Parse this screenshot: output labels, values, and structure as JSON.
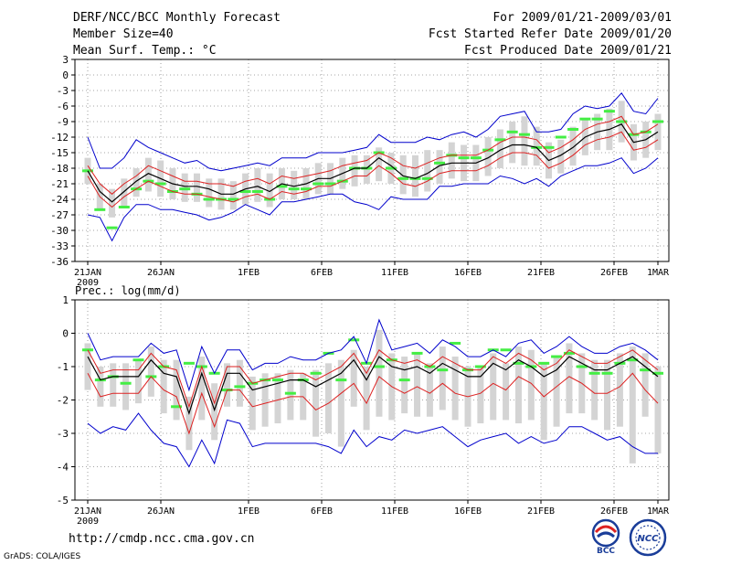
{
  "header": {
    "left": [
      "DERF/NCC/BCC Monthly Forecast",
      "Member Size=40",
      "Mean Surf. Temp.: °C"
    ],
    "right": [
      "For 2009/01/21-2009/03/01",
      "Fcst Started Refer Date 2009/01/20",
      "Fcst Produced Date 2009/01/21"
    ]
  },
  "footer": {
    "url": "http://cmdp.ncc.cma.gov.cn",
    "credit": "GrADS: COLA/IGES",
    "logo_bcc": "BCC",
    "logo_ncc": "NCC"
  },
  "colors": {
    "obs": "#44ee44",
    "mean": "#000000",
    "spread": "#dd2222",
    "range": "#0000cc",
    "box": "#d4d4d4",
    "grid": "#888888"
  },
  "chart_data": [
    {
      "type": "line",
      "title": "Mean Surf. Temp.: °C",
      "ylim": [
        -36,
        3
      ],
      "yticks": [
        3,
        0,
        -3,
        -6,
        -9,
        -12,
        -15,
        -18,
        -21,
        -24,
        -27,
        -30,
        -33,
        -36
      ],
      "xtick_days": [
        1,
        6,
        12,
        17,
        22,
        27,
        32,
        37,
        40
      ],
      "xtick_labels": [
        "21JAN",
        "26JAN",
        "1FEB",
        "6FEB",
        "11FEB",
        "16FEB",
        "21FEB",
        "26FEB",
        "1MAR"
      ],
      "year_label": "2009",
      "series": {
        "mean": [
          -18.5,
          -22.5,
          -24.5,
          -22.5,
          -20.5,
          -19,
          -20,
          -21,
          -21.5,
          -21.5,
          -22,
          -23,
          -23,
          -22,
          -21.5,
          -22.5,
          -21,
          -21.5,
          -21,
          -20,
          -20,
          -19,
          -18,
          -18,
          -16,
          -17.5,
          -19.5,
          -20,
          -19,
          -17.5,
          -17,
          -17,
          -17,
          -16,
          -14.5,
          -13.5,
          -13.5,
          -14,
          -16.5,
          -15.5,
          -14,
          -12,
          -11,
          -10.5,
          -9.5,
          -13,
          -12.5,
          -11
        ],
        "upper": [
          -17.5,
          -21,
          -23,
          -21,
          -19.5,
          -17.5,
          -18.5,
          -19.5,
          -20.5,
          -20.5,
          -21,
          -21,
          -21.5,
          -20.5,
          -20,
          -21,
          -19.5,
          -20,
          -19.5,
          -19,
          -18.5,
          -17.5,
          -17,
          -16.5,
          -15,
          -16,
          -17.5,
          -18,
          -17,
          -16,
          -15.5,
          -15.5,
          -15.5,
          -14.5,
          -13,
          -12,
          -12,
          -12.5,
          -15,
          -14,
          -12.5,
          -10.5,
          -9.5,
          -9,
          -8,
          -11.5,
          -11,
          -9.5
        ],
        "lower": [
          -19.5,
          -23.5,
          -25.5,
          -23.5,
          -22,
          -20.5,
          -21.5,
          -22.5,
          -23,
          -23,
          -23.5,
          -24,
          -24.5,
          -23.5,
          -23,
          -24,
          -22.5,
          -23,
          -22.5,
          -21.5,
          -21.5,
          -20.5,
          -19.5,
          -19.5,
          -17.5,
          -19,
          -21,
          -21.5,
          -20.5,
          -19,
          -18.5,
          -18.5,
          -18.5,
          -17.5,
          -16,
          -15,
          -15,
          -15.5,
          -18,
          -17,
          -15.5,
          -13.5,
          -12.5,
          -12,
          -11,
          -14.5,
          -14,
          -12.5
        ],
        "max": [
          -12,
          -18,
          -18,
          -16,
          -12.5,
          -14,
          -15,
          -16,
          -17,
          -16.5,
          -18,
          -18.5,
          -18,
          -17.5,
          -17,
          -17.5,
          -16,
          -16,
          -16,
          -15,
          -15,
          -15,
          -14.5,
          -14,
          -11.5,
          -13,
          -13,
          -13,
          -12,
          -12.5,
          -11.5,
          -11,
          -12,
          -10.5,
          -8,
          -7.5,
          -7,
          -11,
          -11,
          -10.5,
          -7.5,
          -6,
          -6.5,
          -6,
          -3.5,
          -7,
          -7.5,
          -4.5
        ],
        "min": [
          -27,
          -27.5,
          -32,
          -27.5,
          -25,
          -25,
          -26,
          -26,
          -26.5,
          -27,
          -28,
          -27.5,
          -26.5,
          -25,
          -26,
          -27,
          -24.5,
          -24.5,
          -24,
          -23.5,
          -23,
          -23,
          -24.5,
          -25,
          -26,
          -23.5,
          -24,
          -24,
          -24,
          -21.5,
          -21.5,
          -21,
          -21,
          -21,
          -19.5,
          -20,
          -21,
          -20,
          -21.5,
          -19.5,
          -18.5,
          -17.5,
          -17.5,
          -17,
          -16,
          -19,
          -18,
          -16
        ],
        "box_hi": [
          -16,
          -21,
          -22,
          -20,
          -18,
          -16,
          -16.5,
          -18,
          -19,
          -19,
          -20,
          -20,
          -20.5,
          -19,
          -18,
          -19,
          -18,
          -18.5,
          -18,
          -17,
          -17,
          -16,
          -15.5,
          -15.5,
          -14,
          -15,
          -15.5,
          -15.5,
          -14.5,
          -14.5,
          -13,
          -13.5,
          -13.5,
          -12,
          -10.5,
          -9,
          -8,
          -10,
          -13,
          -12.5,
          -10,
          -8.5,
          -7.5,
          -6.5,
          -5,
          -9.5,
          -9,
          -7.5
        ],
        "box_lo": [
          -21,
          -26,
          -27.5,
          -25.5,
          -23.5,
          -22.5,
          -23.5,
          -24,
          -24.5,
          -24.5,
          -25.5,
          -26,
          -26,
          -25,
          -24.5,
          -25.5,
          -24,
          -24,
          -24,
          -23,
          -23,
          -22,
          -21.5,
          -21,
          -20.5,
          -21,
          -23,
          -23.5,
          -22.5,
          -21,
          -20,
          -20.5,
          -20.5,
          -19.5,
          -18,
          -17,
          -17.5,
          -17.5,
          -20,
          -19,
          -17.5,
          -15.5,
          -14.5,
          -14.5,
          -13,
          -16.5,
          -16,
          -14.5
        ],
        "obs": [
          -18.5,
          -26,
          -29.5,
          -25.5,
          -22,
          -20.5,
          -21,
          -22.5,
          -22,
          -23,
          -24,
          -24,
          -24,
          -22.5,
          -22.5,
          -24,
          -21.5,
          -22,
          -22,
          -21,
          -21,
          -20.5,
          -18,
          -18,
          -15,
          -18,
          -20,
          -20,
          -20,
          -17,
          -15.5,
          -16,
          -16,
          -14.5,
          -12.5,
          -11,
          -11.5,
          -14,
          -14,
          -12,
          -10.5,
          -8.5,
          -8.5,
          -7,
          -9,
          -11.5,
          -11,
          -9
        ]
      }
    },
    {
      "type": "line",
      "title": "Prec.: log(mm/d)",
      "ylim": [
        -5,
        1
      ],
      "yticks": [
        1,
        0,
        -1,
        -2,
        -3,
        -4,
        -5
      ],
      "xtick_days": [
        1,
        6,
        12,
        17,
        22,
        27,
        32,
        37,
        40
      ],
      "xtick_labels": [
        "21JAN",
        "26JAN",
        "1FEB",
        "6FEB",
        "11FEB",
        "16FEB",
        "21FEB",
        "26FEB",
        "1MAR"
      ],
      "year_label": "2009",
      "series": {
        "mean": [
          -0.7,
          -1.4,
          -1.3,
          -1.3,
          -1.3,
          -0.8,
          -1.2,
          -1.3,
          -2.4,
          -1.2,
          -2.3,
          -1.2,
          -1.2,
          -1.7,
          -1.6,
          -1.5,
          -1.4,
          -1.4,
          -1.6,
          -1.4,
          -1.2,
          -0.8,
          -1.4,
          -0.7,
          -1,
          -1.1,
          -1,
          -1.2,
          -0.9,
          -1.1,
          -1.3,
          -1.3,
          -0.9,
          -1.1,
          -0.8,
          -1,
          -1.3,
          -1.1,
          -0.7,
          -0.9,
          -1.1,
          -1.1,
          -0.9,
          -0.7,
          -1,
          -1.3
        ],
        "upper": [
          -0.5,
          -1.2,
          -1.1,
          -1.1,
          -1.1,
          -0.6,
          -1,
          -1.1,
          -2.2,
          -1,
          -2.1,
          -1,
          -1,
          -1.5,
          -1.4,
          -1.3,
          -1.2,
          -1.2,
          -1.4,
          -1.2,
          -1,
          -0.6,
          -1.2,
          -0.5,
          -0.8,
          -0.9,
          -0.8,
          -1,
          -0.7,
          -0.9,
          -1.1,
          -1.1,
          -0.7,
          -0.9,
          -0.6,
          -0.8,
          -1.1,
          -0.9,
          -0.5,
          -0.7,
          -0.9,
          -0.9,
          -0.7,
          -0.5,
          -0.8,
          -1.1
        ],
        "lower": [
          -1.2,
          -1.9,
          -1.8,
          -1.8,
          -1.8,
          -1.3,
          -1.7,
          -1.9,
          -3,
          -1.8,
          -2.8,
          -1.7,
          -1.7,
          -2.2,
          -2.1,
          -2,
          -1.9,
          -1.9,
          -2.3,
          -2.1,
          -1.8,
          -1.5,
          -2.1,
          -1.3,
          -1.6,
          -1.8,
          -1.6,
          -1.8,
          -1.5,
          -1.8,
          -1.9,
          -1.8,
          -1.5,
          -1.7,
          -1.3,
          -1.5,
          -1.9,
          -1.6,
          -1.3,
          -1.5,
          -1.8,
          -1.8,
          -1.6,
          -1.2,
          -1.7,
          -2.1
        ],
        "max": [
          0,
          -0.8,
          -0.7,
          -0.7,
          -0.7,
          -0.3,
          -0.6,
          -0.5,
          -1.7,
          -0.4,
          -1.2,
          -0.5,
          -0.5,
          -1.1,
          -0.9,
          -0.9,
          -0.7,
          -0.8,
          -0.8,
          -0.6,
          -0.5,
          -0.1,
          -0.9,
          0.4,
          -0.5,
          -0.4,
          -0.3,
          -0.6,
          -0.2,
          -0.4,
          -0.7,
          -0.7,
          -0.5,
          -0.7,
          -0.3,
          -0.2,
          -0.6,
          -0.4,
          -0.1,
          -0.4,
          -0.6,
          -0.6,
          -0.4,
          -0.3,
          -0.5,
          -0.8
        ],
        "min": [
          -2.7,
          -3,
          -2.8,
          -2.9,
          -2.4,
          -2.9,
          -3.3,
          -3.4,
          -4,
          -3.2,
          -3.9,
          -2.6,
          -2.7,
          -3.4,
          -3.3,
          -3.3,
          -3.3,
          -3.3,
          -3.3,
          -3.4,
          -3.6,
          -2.9,
          -3.4,
          -3.1,
          -3.2,
          -2.9,
          -3,
          -2.9,
          -2.8,
          -3.1,
          -3.4,
          -3.2,
          -3.1,
          -3,
          -3.3,
          -3.1,
          -3.3,
          -3.2,
          -2.8,
          -2.8,
          -3,
          -3.2,
          -3.1,
          -3.4,
          -3.6,
          -3.6
        ],
        "box_hi": [
          -0.3,
          -1,
          -0.9,
          -0.9,
          -0.8,
          -0.4,
          -0.8,
          -0.8,
          -1.9,
          -0.7,
          -1.5,
          -0.9,
          -0.8,
          -1.3,
          -1.2,
          -1.2,
          -1.1,
          -1.2,
          -1.1,
          -0.9,
          -0.8,
          -0.5,
          -1,
          0.1,
          -0.6,
          -0.7,
          -0.6,
          -0.9,
          -0.4,
          -0.7,
          -1,
          -1,
          -0.6,
          -0.9,
          -0.4,
          -0.5,
          -0.9,
          -0.7,
          -0.3,
          -0.6,
          -0.8,
          -0.8,
          -0.6,
          -0.4,
          -0.6,
          -1
        ],
        "box_lo": [
          -1.7,
          -2.2,
          -2.2,
          -2.3,
          -2.1,
          -1.9,
          -2.4,
          -2.6,
          -3.5,
          -2.6,
          -3.2,
          -2.2,
          -2.2,
          -2.9,
          -2.8,
          -2.7,
          -2.6,
          -2.6,
          -3.1,
          -3,
          -3.4,
          -2.2,
          -2.9,
          -2.5,
          -2.6,
          -2.4,
          -2.5,
          -2.5,
          -2.3,
          -2.6,
          -2.8,
          -2.7,
          -2.6,
          -2.6,
          -2.7,
          -2.6,
          -3.2,
          -2.8,
          -2.4,
          -2.4,
          -2.6,
          -2.9,
          -2.8,
          -3.9,
          -2.5,
          -3.6
        ],
        "obs": [
          -0.5,
          -1.4,
          -1.3,
          -1.5,
          -0.8,
          -1.3,
          -1,
          -2.2,
          -0.9,
          -1,
          -1.2,
          -1.7,
          -1.6,
          -1.5,
          -1.4,
          -1.4,
          -1.8,
          -1.4,
          -1.2,
          -0.6,
          -1.4,
          -0.2,
          -0.9,
          -1,
          -0.8,
          -1.4,
          -0.6,
          -1,
          -1.1,
          -0.3,
          -1.1,
          -1,
          -0.5,
          -0.5,
          -0.9,
          -1,
          -0.9,
          -0.7,
          -0.6,
          -1,
          -1.2,
          -1.2,
          -0.9,
          -0.8,
          -1.1,
          -1.2
        ]
      }
    }
  ]
}
